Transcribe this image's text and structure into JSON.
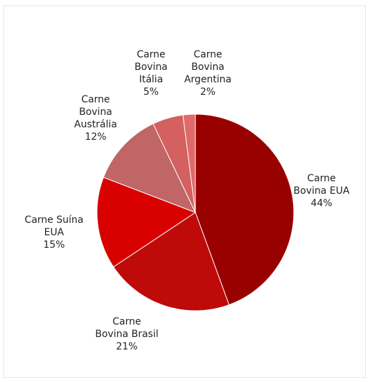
{
  "chart_data": {
    "type": "pie",
    "title": "",
    "slices": [
      {
        "label_lines": [
          "Carne",
          "Bovina EUA"
        ],
        "value": 44,
        "value_label": "44%",
        "color": "#990000"
      },
      {
        "label_lines": [
          "Carne",
          "Bovina Brasil"
        ],
        "value": 21,
        "value_label": "21%",
        "color": "#BF0A0A"
      },
      {
        "label_lines": [
          "Carne Suína",
          "EUA"
        ],
        "value": 15,
        "value_label": "15%",
        "color": "#D90000"
      },
      {
        "label_lines": [
          "Carne",
          "Bovina",
          "Austrália"
        ],
        "value": 12,
        "value_label": "12%",
        "color": "#C06666"
      },
      {
        "label_lines": [
          "Carne",
          "Bovina",
          "Itália"
        ],
        "value": 5,
        "value_label": "5%",
        "color": "#D46060"
      },
      {
        "label_lines": [
          "Carne",
          "Bovina",
          "Argentina"
        ],
        "value": 2,
        "value_label": "2%",
        "color": "#E06A6A"
      }
    ]
  }
}
